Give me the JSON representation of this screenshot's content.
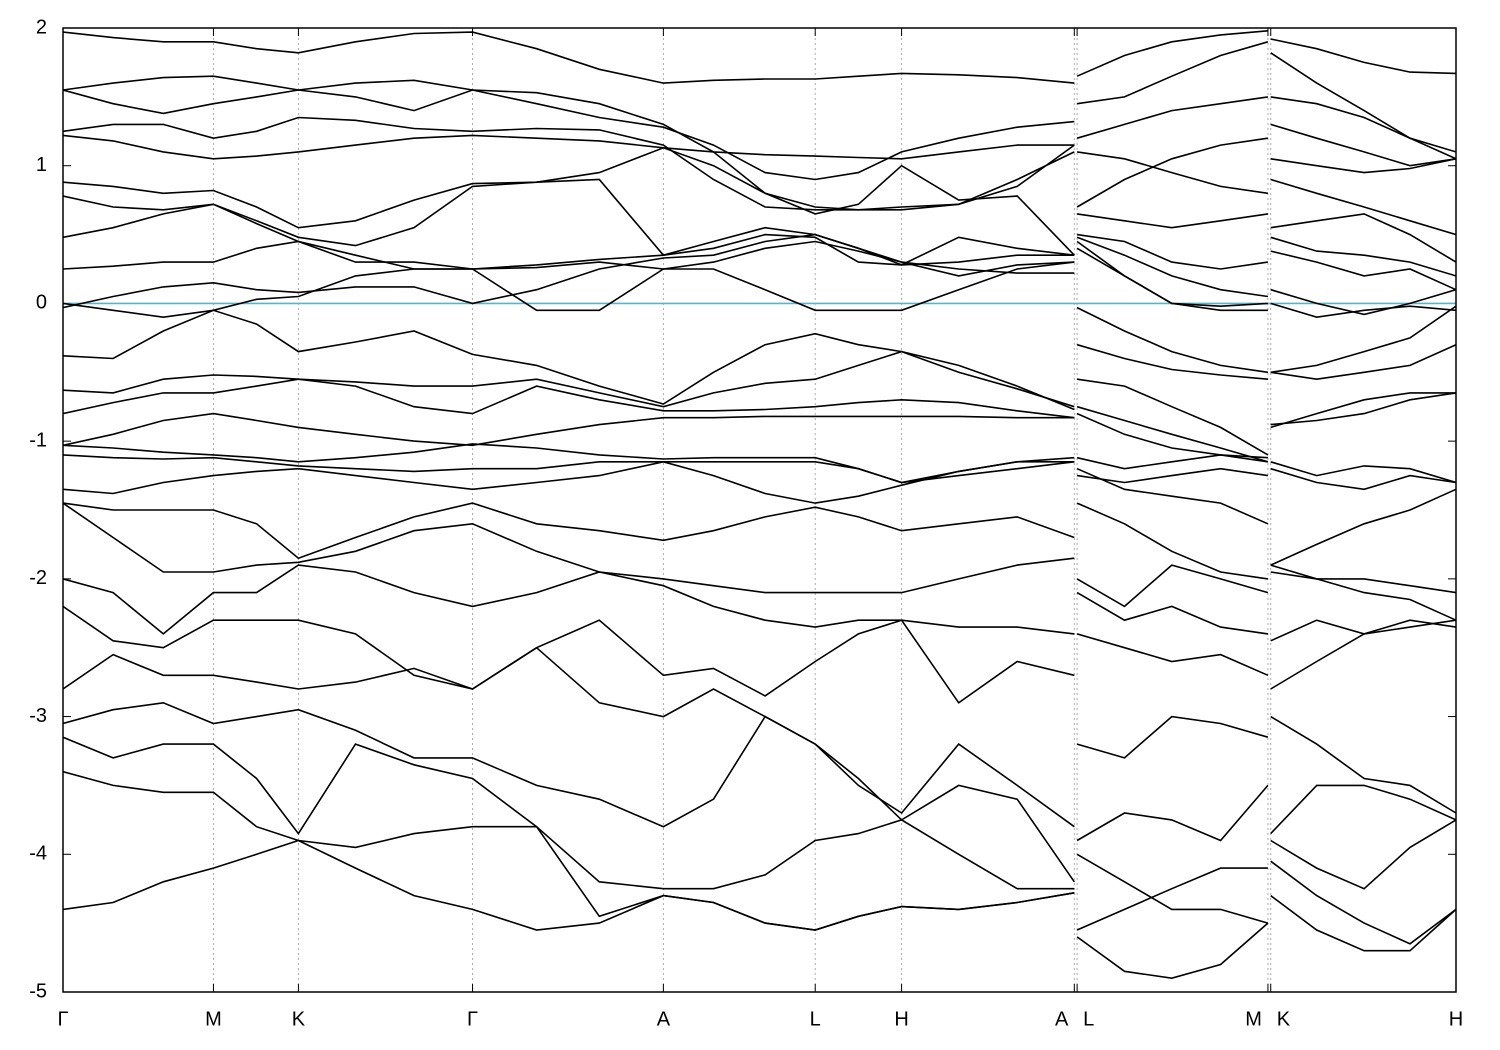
{
  "chart_data": {
    "type": "line",
    "xlim": [
      0,
      1
    ],
    "ylim": [
      -5,
      2
    ],
    "xticks": [
      {
        "value": 0,
        "label": "Γ"
      },
      {
        "value": 0.108,
        "label": "M"
      },
      {
        "value": 0.169,
        "label": "K"
      },
      {
        "value": 0.294,
        "label": "Γ"
      },
      {
        "value": 0.431,
        "label": "A"
      },
      {
        "value": 0.54,
        "label": "L"
      },
      {
        "value": 0.602,
        "label": "H"
      },
      {
        "value": 0.726,
        "label": "A"
      },
      {
        "value": 0.728,
        "label": "L"
      },
      {
        "value": 0.865,
        "label": "M"
      },
      {
        "value": 0.867,
        "label": "K"
      },
      {
        "value": 1,
        "label": "H"
      }
    ],
    "yticks": [
      -5,
      -4,
      -3,
      -2,
      -1,
      0,
      1,
      2
    ],
    "grid": true,
    "line_color": "#000000",
    "fermi_level": 0,
    "fermi_color": "#5ab4c8",
    "x": [
      0,
      0.036,
      0.072,
      0.108,
      0.139,
      0.169,
      0.21,
      0.252,
      0.294,
      0.34,
      0.385,
      0.431,
      0.467,
      0.504,
      0.54,
      0.571,
      0.602,
      0.643,
      0.685,
      0.726,
      0.727,
      0.728,
      0.762,
      0.796,
      0.831,
      0.865,
      0.866,
      0.867,
      0.9,
      0.934,
      0.967,
      1.0
    ],
    "series": [
      {
        "values": [
          1.97,
          1.93,
          1.9,
          1.9,
          1.85,
          1.82,
          1.9,
          1.96,
          1.97,
          1.85,
          1.7,
          1.6,
          1.62,
          1.63,
          1.63,
          1.65,
          1.67,
          1.66,
          1.64,
          1.6,
          null,
          1.65,
          1.8,
          1.9,
          1.95,
          1.98,
          null,
          1.92,
          1.85,
          1.75,
          1.68,
          1.67
        ]
      },
      {
        "values": [
          1.55,
          1.6,
          1.64,
          1.65,
          1.6,
          1.55,
          1.6,
          1.62,
          1.55,
          1.45,
          1.35,
          1.28,
          1.15,
          0.95,
          0.9,
          0.95,
          1.1,
          1.2,
          1.28,
          1.32,
          null,
          1.45,
          1.5,
          1.65,
          1.8,
          1.9,
          null,
          1.82,
          1.6,
          1.4,
          1.2,
          1.05
        ]
      },
      {
        "values": [
          1.55,
          1.45,
          1.38,
          1.45,
          1.5,
          1.55,
          1.5,
          1.4,
          1.55,
          1.53,
          1.45,
          1.3,
          1.1,
          0.8,
          0.7,
          0.68,
          0.7,
          0.72,
          0.9,
          1.1,
          null,
          1.2,
          1.3,
          1.4,
          1.45,
          1.5,
          null,
          1.5,
          1.45,
          1.35,
          1.2,
          1.1
        ]
      },
      {
        "values": [
          1.25,
          1.3,
          1.3,
          1.2,
          1.25,
          1.35,
          1.33,
          1.27,
          1.25,
          1.27,
          1.26,
          1.15,
          0.9,
          0.7,
          0.68,
          0.68,
          0.68,
          0.72,
          0.85,
          1.15,
          null,
          0.7,
          0.9,
          1.05,
          1.15,
          1.2,
          null,
          1.3,
          1.2,
          1.1,
          1.0,
          1.05
        ]
      },
      {
        "values": [
          1.22,
          1.18,
          1.1,
          1.05,
          1.07,
          1.1,
          1.15,
          1.2,
          1.22,
          1.2,
          1.18,
          1.13,
          1.1,
          1.08,
          1.07,
          1.06,
          1.05,
          1.1,
          1.15,
          1.15,
          null,
          1.1,
          1.05,
          0.95,
          0.85,
          0.8,
          null,
          1.05,
          1.0,
          0.95,
          0.98,
          1.05
        ]
      },
      {
        "values": [
          0.88,
          0.85,
          0.8,
          0.82,
          0.7,
          0.55,
          0.6,
          0.75,
          0.87,
          0.88,
          0.95,
          1.13,
          1.0,
          0.8,
          0.65,
          0.72,
          1.0,
          0.75,
          0.78,
          0.35,
          null,
          0.65,
          0.6,
          0.55,
          0.6,
          0.65,
          null,
          0.9,
          0.8,
          0.7,
          0.6,
          0.5
        ]
      },
      {
        "values": [
          0.78,
          0.7,
          0.68,
          0.72,
          0.6,
          0.48,
          0.42,
          0.55,
          0.85,
          0.88,
          0.9,
          0.35,
          0.45,
          0.55,
          0.5,
          0.4,
          0.28,
          0.48,
          0.4,
          0.35,
          null,
          0.5,
          0.45,
          0.3,
          0.25,
          0.3,
          null,
          0.55,
          0.6,
          0.65,
          0.5,
          0.3
        ]
      },
      {
        "values": [
          0.48,
          0.55,
          0.65,
          0.72,
          0.58,
          0.45,
          0.3,
          0.3,
          0.25,
          0.28,
          0.32,
          0.35,
          0.4,
          0.5,
          0.48,
          0.3,
          0.28,
          0.3,
          0.35,
          0.35,
          null,
          0.48,
          0.35,
          0.2,
          0.1,
          0.05,
          null,
          0.48,
          0.38,
          0.35,
          0.3,
          0.2
        ]
      },
      {
        "values": [
          0.25,
          0.27,
          0.3,
          0.3,
          0.4,
          0.45,
          0.35,
          0.25,
          0.25,
          0.26,
          0.3,
          0.25,
          0.3,
          0.4,
          0.45,
          0.38,
          0.3,
          0.25,
          0.22,
          0.22,
          null,
          0.45,
          0.2,
          0.0,
          -0.02,
          0.0,
          null,
          0.38,
          0.3,
          0.2,
          0.25,
          0.1
        ]
      },
      {
        "values": [
          -0.03,
          0.05,
          0.12,
          0.15,
          0.1,
          0.08,
          0.12,
          0.12,
          0.0,
          0.1,
          0.25,
          0.33,
          0.35,
          0.45,
          0.5,
          0.4,
          0.3,
          0.2,
          0.28,
          0.3,
          null,
          0.4,
          0.2,
          0.0,
          -0.05,
          -0.05,
          null,
          0.1,
          0.0,
          -0.08,
          0.0,
          0.1
        ]
      },
      {
        "values": [
          0.0,
          -0.05,
          -0.1,
          -0.05,
          0.03,
          0.05,
          0.2,
          0.25,
          0.25,
          -0.05,
          -0.05,
          0.25,
          0.25,
          0.1,
          -0.05,
          -0.05,
          -0.05,
          0.1,
          0.25,
          0.3,
          null,
          -0.03,
          -0.2,
          -0.35,
          -0.45,
          -0.5,
          null,
          0.0,
          -0.1,
          -0.05,
          -0.02,
          -0.05
        ]
      },
      {
        "values": [
          -0.38,
          -0.4,
          -0.2,
          -0.05,
          -0.15,
          -0.35,
          -0.28,
          -0.2,
          -0.37,
          -0.45,
          -0.6,
          -0.73,
          -0.5,
          -0.3,
          -0.22,
          -0.3,
          -0.35,
          -0.5,
          -0.62,
          -0.75,
          null,
          -0.3,
          -0.4,
          -0.48,
          -0.52,
          -0.55,
          null,
          -0.5,
          -0.45,
          -0.35,
          -0.25,
          -0.02
        ]
      },
      {
        "values": [
          -0.63,
          -0.65,
          -0.55,
          -0.52,
          -0.53,
          -0.55,
          -0.57,
          -0.6,
          -0.6,
          -0.55,
          -0.65,
          -0.75,
          -0.65,
          -0.58,
          -0.55,
          -0.45,
          -0.35,
          -0.45,
          -0.6,
          -0.77,
          null,
          -0.55,
          -0.6,
          -0.75,
          -0.9,
          -1.1,
          null,
          -0.5,
          -0.55,
          -0.5,
          -0.45,
          -0.3
        ]
      },
      {
        "values": [
          -0.8,
          -0.72,
          -0.65,
          -0.65,
          -0.6,
          -0.55,
          -0.6,
          -0.75,
          -0.8,
          -0.6,
          -0.7,
          -0.78,
          -0.78,
          -0.77,
          -0.75,
          -0.72,
          -0.7,
          -0.72,
          -0.78,
          -0.83,
          null,
          -0.75,
          -0.85,
          -0.95,
          -1.05,
          -1.15,
          null,
          -0.9,
          -0.8,
          -0.7,
          -0.65,
          -0.65
        ]
      },
      {
        "values": [
          -1.03,
          -0.95,
          -0.85,
          -0.8,
          -0.85,
          -0.9,
          -0.95,
          -1.0,
          -1.03,
          -0.95,
          -0.88,
          -0.83,
          -0.83,
          -0.82,
          -0.82,
          -0.82,
          -0.82,
          -0.82,
          -0.83,
          -0.83,
          null,
          -0.8,
          -0.95,
          -1.05,
          -1.1,
          -1.15,
          null,
          -0.88,
          -0.85,
          -0.8,
          -0.7,
          -0.65
        ]
      },
      {
        "values": [
          -1.03,
          -1.05,
          -1.08,
          -1.1,
          -1.12,
          -1.15,
          -1.12,
          -1.08,
          -1.02,
          -1.05,
          -1.1,
          -1.13,
          -1.12,
          -1.12,
          -1.12,
          -1.2,
          -1.3,
          -1.22,
          -1.15,
          -1.12,
          null,
          -1.12,
          -1.2,
          -1.15,
          -1.1,
          -1.12,
          null,
          -1.15,
          -1.25,
          -1.18,
          -1.2,
          -1.3
        ]
      },
      {
        "values": [
          -1.1,
          -1.12,
          -1.13,
          -1.12,
          -1.15,
          -1.18,
          -1.2,
          -1.22,
          -1.2,
          -1.2,
          -1.15,
          -1.15,
          -1.25,
          -1.38,
          -1.45,
          -1.4,
          -1.32,
          -1.22,
          -1.15,
          -1.15,
          null,
          -1.25,
          -1.3,
          -1.25,
          -1.2,
          -1.25,
          null,
          -1.2,
          -1.3,
          -1.35,
          -1.25,
          -1.3
        ]
      },
      {
        "values": [
          -1.35,
          -1.38,
          -1.3,
          -1.25,
          -1.22,
          -1.2,
          -1.25,
          -1.3,
          -1.35,
          -1.3,
          -1.25,
          -1.15,
          -1.15,
          -1.15,
          -1.15,
          -1.2,
          -1.3,
          -1.25,
          -1.2,
          -1.15,
          null,
          -1.2,
          -1.35,
          -1.4,
          -1.45,
          -1.6,
          null,
          -1.9,
          -1.75,
          -1.6,
          -1.5,
          -1.35
        ]
      },
      {
        "values": [
          -1.45,
          -1.5,
          -1.5,
          -1.5,
          -1.6,
          -1.85,
          -1.7,
          -1.55,
          -1.45,
          -1.6,
          -1.65,
          -1.72,
          -1.65,
          -1.55,
          -1.48,
          -1.55,
          -1.65,
          -1.6,
          -1.55,
          -1.7,
          null,
          -1.45,
          -1.6,
          -1.8,
          -1.95,
          -2.0,
          null,
          -1.9,
          -2.0,
          -2.0,
          -2.05,
          -2.1
        ]
      },
      {
        "values": [
          -1.45,
          -1.7,
          -1.95,
          -1.95,
          -1.9,
          -1.88,
          -1.8,
          -1.65,
          -1.6,
          -1.8,
          -1.95,
          -2.0,
          -2.05,
          -2.1,
          -2.1,
          -2.1,
          -2.1,
          -2.0,
          -1.9,
          -1.85,
          null,
          -2.0,
          -2.2,
          -1.9,
          -2.0,
          -2.1,
          null,
          -1.95,
          -2.0,
          -2.1,
          -2.15,
          -2.3
        ]
      },
      {
        "values": [
          -2.0,
          -2.1,
          -2.4,
          -2.1,
          -2.1,
          -1.9,
          -1.95,
          -2.1,
          -2.2,
          -2.1,
          -1.95,
          -2.05,
          -2.2,
          -2.3,
          -2.35,
          -2.3,
          -2.3,
          -2.35,
          -2.35,
          -2.4,
          null,
          -2.1,
          -2.3,
          -2.2,
          -2.35,
          -2.4,
          null,
          -2.45,
          -2.3,
          -2.4,
          -2.3,
          -2.35
        ]
      },
      {
        "values": [
          -2.2,
          -2.45,
          -2.5,
          -2.3,
          -2.3,
          -2.3,
          -2.4,
          -2.7,
          -2.8,
          -2.5,
          -2.3,
          -2.7,
          -2.65,
          -2.85,
          -2.6,
          -2.4,
          -2.3,
          -2.9,
          -2.6,
          -2.7,
          null,
          -2.4,
          -2.5,
          -2.6,
          -2.55,
          -2.7,
          null,
          -2.8,
          -2.6,
          -2.4,
          -2.35,
          -2.3
        ]
      },
      {
        "values": [
          -2.8,
          -2.55,
          -2.7,
          -2.7,
          -2.75,
          -2.8,
          -2.75,
          -2.65,
          -2.8,
          -2.5,
          -2.9,
          -3.0,
          -2.8,
          -3.0,
          -3.2,
          -3.5,
          -3.7,
          -3.2,
          -3.5,
          -3.8,
          null,
          -3.2,
          -3.3,
          -3.0,
          -3.05,
          -3.15,
          null,
          -3.0,
          -3.2,
          -3.45,
          -3.5,
          -3.7
        ]
      },
      {
        "values": [
          -3.05,
          -2.95,
          -2.9,
          -3.05,
          -3.0,
          -2.95,
          -3.1,
          -3.3,
          -3.3,
          -3.5,
          -3.6,
          -3.8,
          -3.6,
          -3.0,
          -3.2,
          -3.45,
          -3.75,
          -3.5,
          -3.6,
          -4.2,
          null,
          -3.9,
          -3.7,
          -3.75,
          -3.9,
          -3.5,
          null,
          -3.85,
          -3.5,
          -3.5,
          -3.6,
          -3.75
        ]
      },
      {
        "values": [
          -3.15,
          -3.3,
          -3.2,
          -3.2,
          -3.45,
          -3.85,
          -3.2,
          -3.35,
          -3.45,
          -3.8,
          -4.2,
          -4.25,
          -4.25,
          -4.15,
          -3.9,
          -3.85,
          -3.75,
          -4.0,
          -4.25,
          -4.25,
          null,
          -4.55,
          -4.4,
          -4.25,
          -4.1,
          -4.1,
          null,
          -3.9,
          -4.1,
          -4.25,
          -3.95,
          -3.75
        ]
      },
      {
        "values": [
          -3.4,
          -3.5,
          -3.55,
          -3.55,
          -3.8,
          -3.9,
          -3.95,
          -3.85,
          -3.8,
          -3.8,
          -4.45,
          -4.3,
          -4.35,
          -4.5,
          -4.55,
          -4.45,
          -4.38,
          -4.4,
          -4.35,
          -4.28,
          null,
          -4.0,
          -4.2,
          -4.4,
          -4.4,
          -4.5,
          null,
          -4.05,
          -4.3,
          -4.5,
          -4.65,
          -4.4
        ]
      },
      {
        "values": [
          -4.4,
          -4.35,
          -4.2,
          -4.1,
          -4.0,
          -3.9,
          -4.1,
          -4.3,
          -4.4,
          -4.55,
          -4.5,
          -4.3,
          -4.35,
          -4.5,
          -4.55,
          -4.45,
          -4.38,
          -4.4,
          -4.35,
          -4.28,
          null,
          -4.6,
          -4.85,
          -4.9,
          -4.8,
          -4.5,
          null,
          -4.3,
          -4.55,
          -4.7,
          -4.7,
          -4.4
        ]
      }
    ]
  }
}
